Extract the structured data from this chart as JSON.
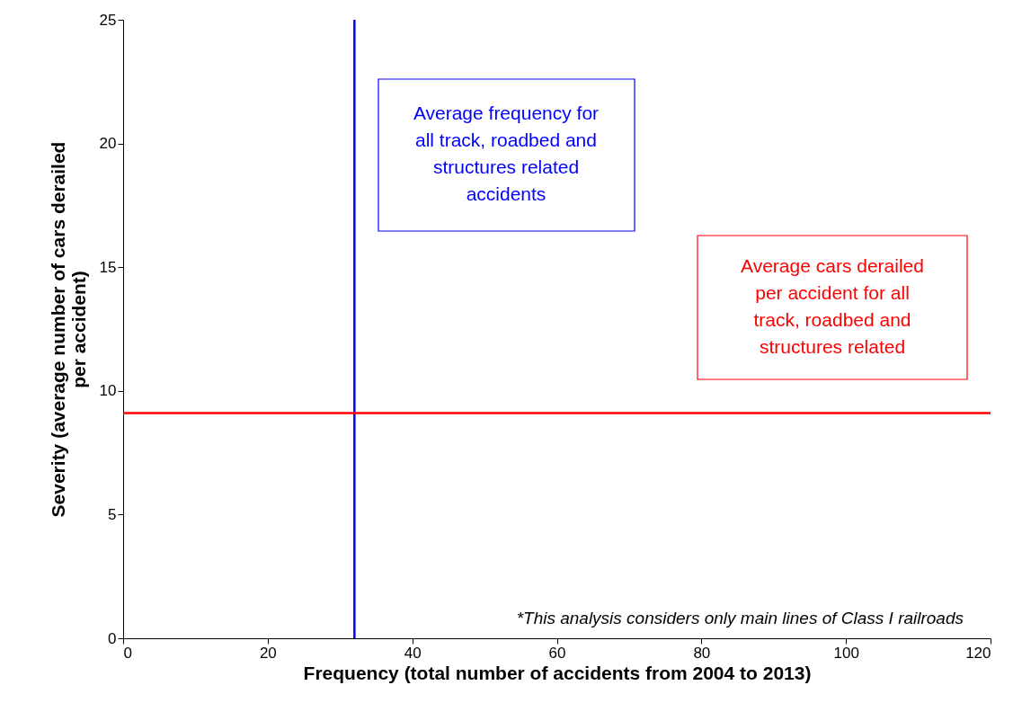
{
  "chart_data": {
    "type": "scatter",
    "xlabel": "Frequency (total number of accidents from 2004 to 2013)",
    "ylabel": "Severity (average number of cars derailed\nper accident)",
    "xlim": [
      0,
      120
    ],
    "xticks": [
      0,
      20,
      40,
      60,
      80,
      100,
      120
    ],
    "ylim": [
      0,
      25
    ],
    "yticks": [
      0,
      5,
      10,
      15,
      20,
      25
    ],
    "grid": false,
    "ref_lines": [
      {
        "axis": "x",
        "value": 32,
        "color": "#0000ff",
        "label": "Average frequency for\nall track, roadbed and\nstructures related\naccidents"
      },
      {
        "axis": "y",
        "value": 9.1,
        "color": "#ff0000",
        "label": "Average cars derailed\nper accident for all\ntrack, roadbed and\nstructures related"
      }
    ],
    "annotations": [
      "*This analysis considers only main lines of Class I railroads"
    ]
  }
}
